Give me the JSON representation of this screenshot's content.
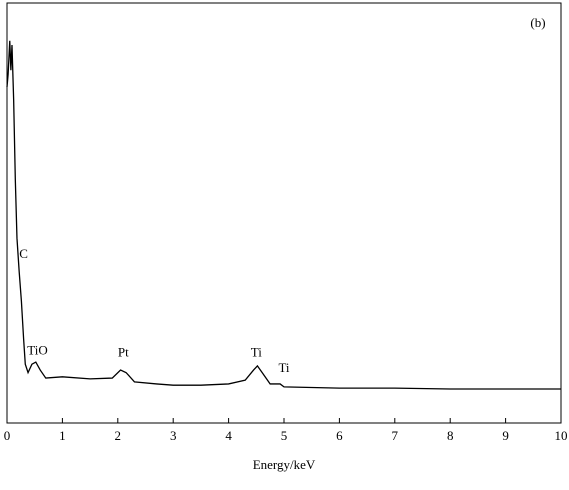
{
  "chart_data": {
    "type": "line",
    "panel_label": "(b)",
    "xlabel": "Energy/keV",
    "x": [
      0.0,
      0.02,
      0.05,
      0.07,
      0.09,
      0.12,
      0.15,
      0.18,
      0.22,
      0.26,
      0.3,
      0.33,
      0.38,
      0.45,
      0.52,
      0.6,
      0.7,
      1.0,
      1.5,
      1.9,
      2.05,
      2.15,
      2.3,
      2.7,
      3.0,
      3.5,
      4.0,
      4.3,
      4.45,
      4.52,
      4.6,
      4.75,
      4.93,
      5.0,
      6.0,
      7.0,
      8.0,
      10.0
    ],
    "series": [
      {
        "name": "spectrum",
        "color": "#000000",
        "values": [
          80,
          83,
          91,
          84,
          90,
          77,
          58,
          44,
          36,
          29,
          20,
          14,
          12,
          14,
          14.5,
          12.6,
          10.7,
          11,
          10.5,
          10.7,
          12.6,
          12,
          9.8,
          9.3,
          9.0,
          9.0,
          9.3,
          10.2,
          12.6,
          13.6,
          12.1,
          9.3,
          9.3,
          8.6,
          8.3,
          8.3,
          8.1,
          8.1
        ]
      }
    ],
    "annotations": [
      {
        "text": "C",
        "x": 0.3,
        "y": 40
      },
      {
        "text": "TiO",
        "x": 0.55,
        "y": 17
      },
      {
        "text": "Pt",
        "x": 2.1,
        "y": 16.5
      },
      {
        "text": "Ti",
        "x": 4.5,
        "y": 16.5
      },
      {
        "text": "Ti",
        "x": 5.0,
        "y": 12.8
      }
    ],
    "xlim": [
      0,
      10
    ],
    "ylim": [
      0,
      100
    ],
    "xticks": [
      0,
      1,
      2,
      3,
      4,
      5,
      6,
      7,
      8,
      9,
      10
    ]
  }
}
